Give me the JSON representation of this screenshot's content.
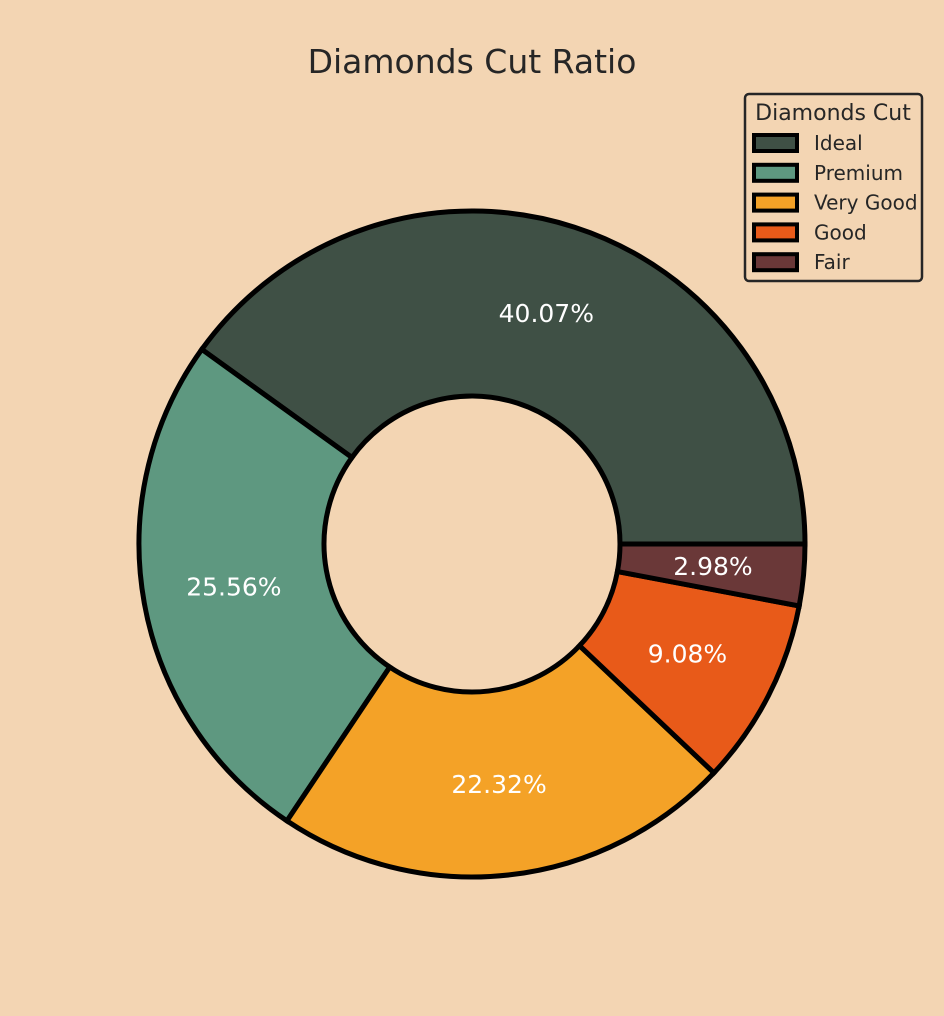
{
  "chart_data": {
    "type": "pie",
    "variant": "donut",
    "title": "Diamonds Cut Ratio",
    "categories": [
      "Ideal",
      "Premium",
      "Very Good",
      "Good",
      "Fair"
    ],
    "values": [
      40.07,
      25.56,
      22.32,
      9.08,
      2.98
    ],
    "value_labels": [
      "40.07%",
      "25.56%",
      "22.32%",
      "9.08%",
      "2.98%"
    ],
    "colors": [
      "#3F5045",
      "#5E9880",
      "#F4A227",
      "#E85A19",
      "#6A3838"
    ],
    "legend": {
      "title": "Diamonds Cut",
      "placement": "top-right",
      "entries": [
        "Ideal",
        "Premium",
        "Very Good",
        "Good",
        "Fair"
      ]
    },
    "start_angle_deg": 0,
    "direction": "counterclockwise",
    "wedge_edgecolor": "#000000",
    "background": "#F3D5B3"
  }
}
